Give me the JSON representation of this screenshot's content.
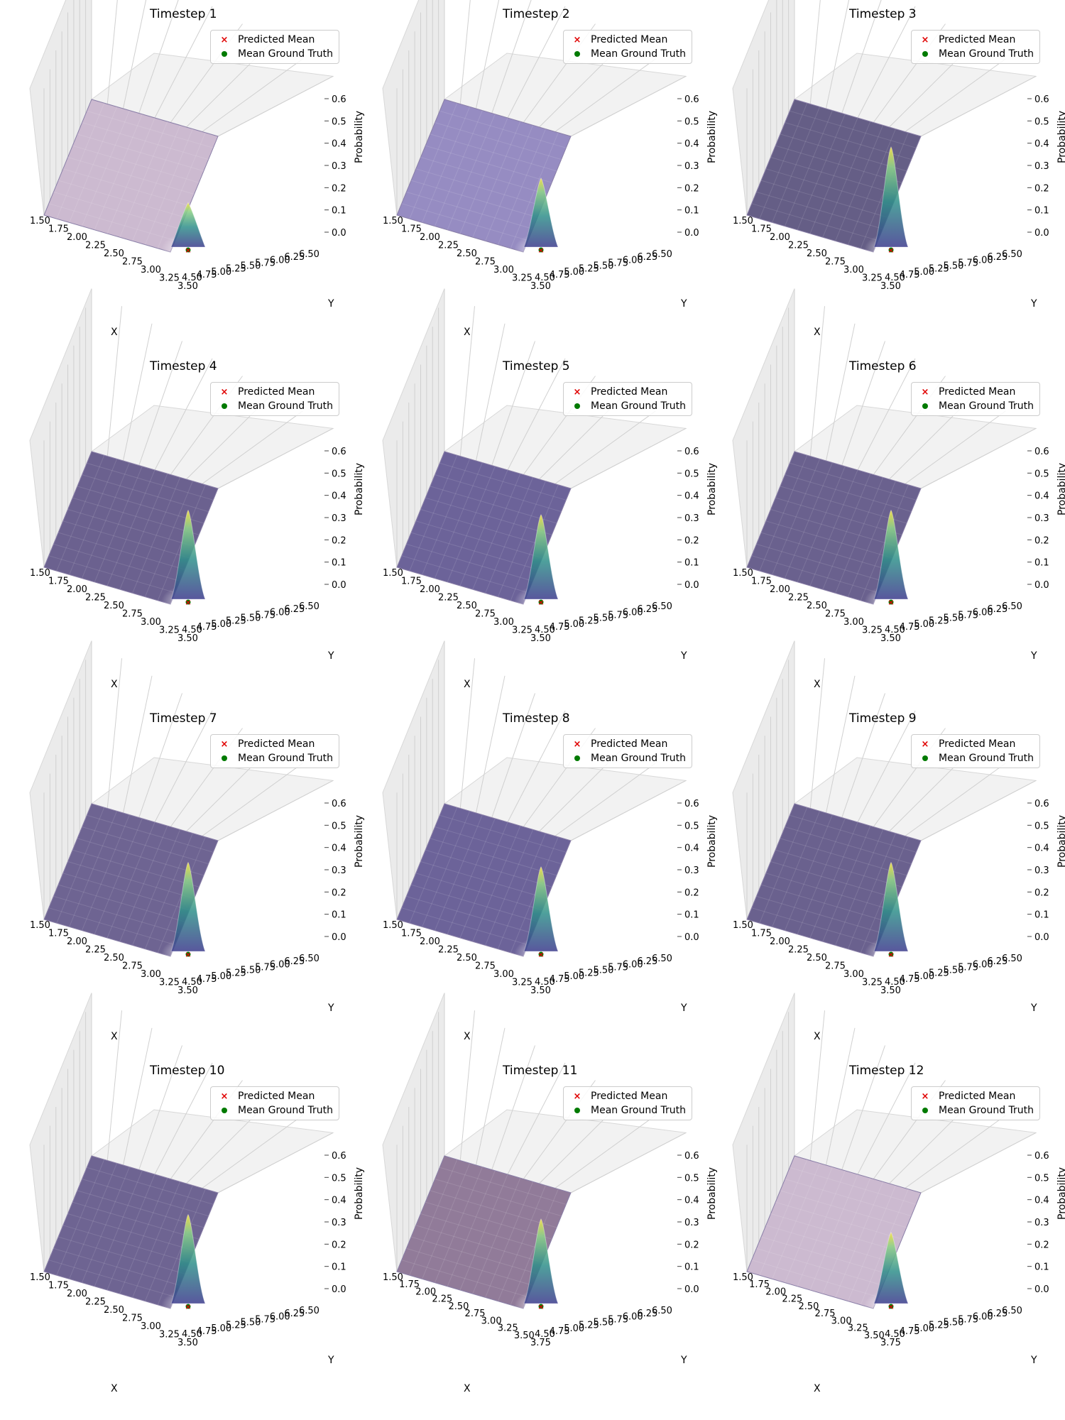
{
  "chart_data": {
    "type": "surface",
    "legend": {
      "predicted": "Predicted Mean",
      "ground_truth": "Mean Ground Truth",
      "placement": "top-right"
    },
    "xlabel": "X",
    "ylabel": "Y",
    "zlabel": "Probability",
    "zlim": [
      0,
      0.6
    ],
    "zticks": [
      "0.0",
      "0.1",
      "0.2",
      "0.3",
      "0.4",
      "0.5",
      "0.6"
    ],
    "yticks": [
      "4.50",
      "4.75",
      "5.00",
      "5.25",
      "5.50",
      "5.75",
      "6.00",
      "6.25",
      "6.50"
    ],
    "colors": {
      "predicted": "#e00000",
      "ground_truth": "#007a00",
      "pane": "#f2f2f2",
      "grid": "#d0d0d0"
    },
    "panels": [
      {
        "title": "Timestep 1",
        "xticks": [
          "1.50",
          "1.75",
          "2.00",
          "2.25",
          "2.50",
          "2.75",
          "3.00",
          "3.25",
          "3.50"
        ],
        "peak": 0.2,
        "floor": "#c8b4cc"
      },
      {
        "title": "Timestep 2",
        "xticks": [
          "1.50",
          "1.75",
          "2.00",
          "2.25",
          "2.50",
          "2.75",
          "3.00",
          "3.25",
          "3.50"
        ],
        "peak": 0.31,
        "floor": "#8d82bd"
      },
      {
        "title": "Timestep 3",
        "xticks": [
          "1.50",
          "1.75",
          "2.00",
          "2.25",
          "2.50",
          "2.75",
          "3.00",
          "3.25",
          "3.50"
        ],
        "peak": 0.45,
        "floor": "#58507c"
      },
      {
        "title": "Timestep 4",
        "xticks": [
          "1.50",
          "1.75",
          "2.00",
          "2.25",
          "2.50",
          "2.75",
          "3.00",
          "3.25",
          "3.50"
        ],
        "peak": 0.4,
        "floor": "#5e5486"
      },
      {
        "title": "Timestep 5",
        "xticks": [
          "1.50",
          "1.75",
          "2.00",
          "2.25",
          "2.50",
          "2.75",
          "3.00",
          "3.25",
          "3.50"
        ],
        "peak": 0.38,
        "floor": "#5f5690"
      },
      {
        "title": "Timestep 6",
        "xticks": [
          "1.50",
          "1.75",
          "2.00",
          "2.25",
          "2.50",
          "2.75",
          "3.00",
          "3.25",
          "3.50"
        ],
        "peak": 0.4,
        "floor": "#5d5484"
      },
      {
        "title": "Timestep 7",
        "xticks": [
          "1.50",
          "1.75",
          "2.00",
          "2.25",
          "2.50",
          "2.75",
          "3.00",
          "3.25",
          "3.50"
        ],
        "peak": 0.4,
        "floor": "#625789"
      },
      {
        "title": "Timestep 8",
        "xticks": [
          "1.50",
          "1.75",
          "2.00",
          "2.25",
          "2.50",
          "2.75",
          "3.00",
          "3.25",
          "3.50"
        ],
        "peak": 0.38,
        "floor": "#5f5690"
      },
      {
        "title": "Timestep 9",
        "xticks": [
          "1.50",
          "1.75",
          "2.00",
          "2.25",
          "2.50",
          "2.75",
          "3.00",
          "3.25",
          "3.50"
        ],
        "peak": 0.4,
        "floor": "#5d5484"
      },
      {
        "title": "Timestep 10",
        "xticks": [
          "1.50",
          "1.75",
          "2.00",
          "2.25",
          "2.50",
          "2.75",
          "3.00",
          "3.25",
          "3.50"
        ],
        "peak": 0.4,
        "floor": "#625789"
      },
      {
        "title": "Timestep 11",
        "xticks": [
          "1.50",
          "1.75",
          "2.00",
          "2.25",
          "2.50",
          "2.75",
          "3.00",
          "3.25",
          "3.50",
          "3.75"
        ],
        "peak": 0.38,
        "floor": "#887090"
      },
      {
        "title": "Timestep 12",
        "xticks": [
          "1.50",
          "1.75",
          "2.00",
          "2.25",
          "2.50",
          "2.75",
          "3.00",
          "3.25",
          "3.50",
          "3.75"
        ],
        "peak": 0.32,
        "floor": "#c8b4cc"
      }
    ]
  }
}
